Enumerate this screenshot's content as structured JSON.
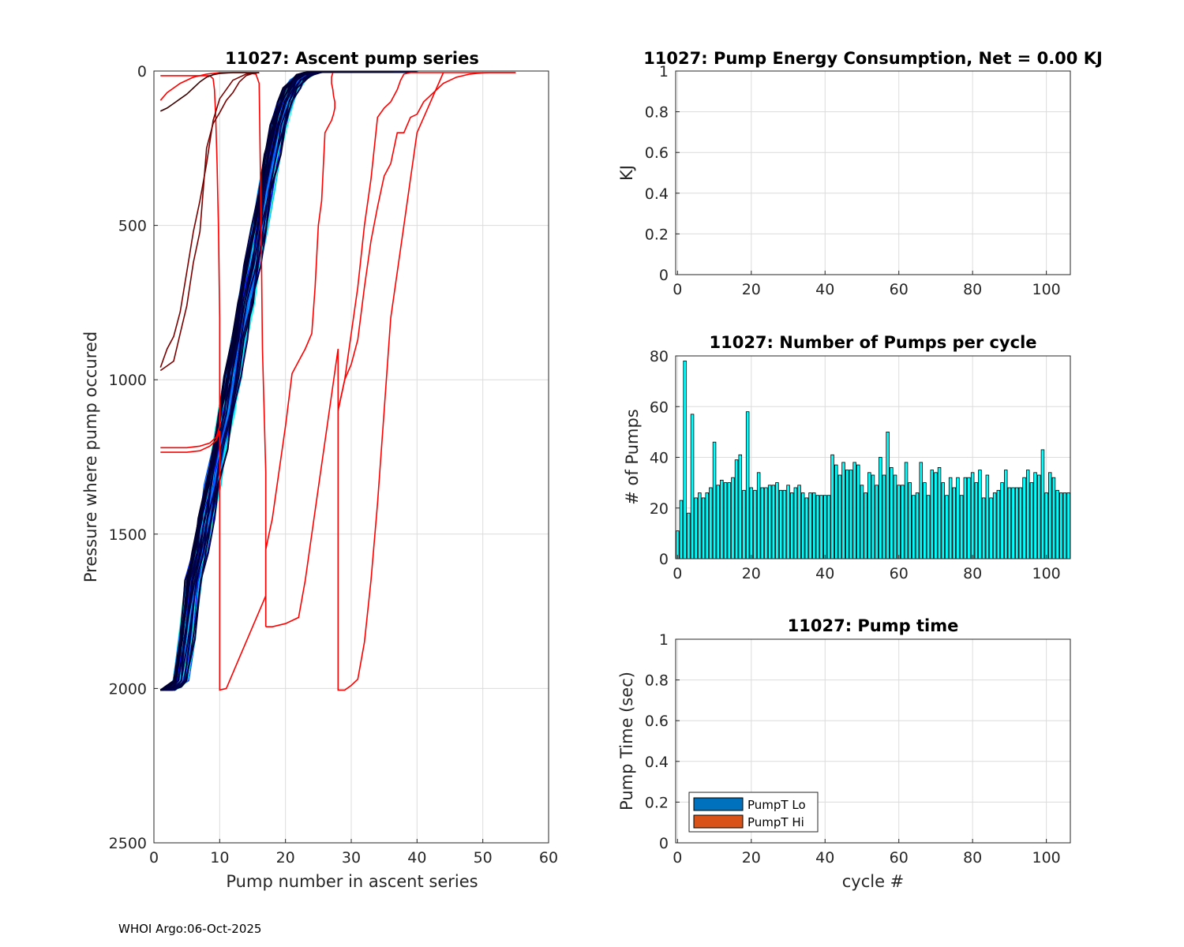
{
  "footer": "WHOI Argo:06-Oct-2025",
  "chart_data": [
    {
      "type": "line",
      "title": "11027: Ascent pump series",
      "xlabel": "Pump number in ascent series",
      "ylabel": "Pressure where pump occured",
      "xlim": [
        0,
        60
      ],
      "ylim": [
        0,
        2500
      ],
      "y_reversed": true,
      "xticks": [
        "0",
        "10",
        "20",
        "30",
        "40",
        "50",
        "60"
      ],
      "yticks": [
        "0",
        "500",
        "1000",
        "1500",
        "2000",
        "2500"
      ],
      "grid": true,
      "bundle": {
        "count": 100,
        "colormap": "jet",
        "base_x": [
          1,
          2,
          3,
          4,
          5,
          6,
          7,
          8,
          9,
          10,
          11,
          12,
          13,
          14,
          15,
          16,
          17,
          18,
          19,
          20,
          21,
          22,
          23,
          24,
          25,
          26,
          30,
          35,
          38
        ],
        "base_y": [
          2005,
          2005,
          1995,
          1975,
          1840,
          1650,
          1560,
          1450,
          1340,
          1225,
          1110,
          990,
          870,
          750,
          630,
          510,
          390,
          270,
          175,
          100,
          55,
          28,
          12,
          5,
          3,
          3,
          3,
          3,
          3
        ]
      },
      "series": [
        {
          "name": "cycle-red-a",
          "color": "#ff0000",
          "x": [
            1,
            3,
            5,
            7,
            8.5,
            9.5,
            10,
            10,
            9.8,
            9.6,
            9.4,
            9.2,
            9,
            8.5,
            6,
            3,
            1
          ],
          "y": [
            1220,
            1220,
            1220,
            1215,
            1205,
            1185,
            1150,
            800,
            500,
            300,
            150,
            60,
            25,
            15,
            15,
            15,
            15
          ]
        },
        {
          "name": "cycle-red-b",
          "color": "#ff0000",
          "x": [
            1,
            3,
            5,
            7,
            8.5,
            9.5,
            10,
            10,
            10,
            10,
            10,
            11,
            13,
            15,
            17,
            17,
            16.5,
            16.3,
            16.1,
            16,
            15.5,
            14,
            12,
            10,
            8,
            6,
            4,
            2,
            1
          ],
          "y": [
            1235,
            1235,
            1235,
            1230,
            1215,
            1195,
            1165,
            1700,
            2005,
            2005,
            2005,
            2000,
            1900,
            1800,
            1700,
            1300,
            900,
            500,
            200,
            40,
            10,
            5,
            5,
            5,
            10,
            20,
            40,
            70,
            95
          ]
        },
        {
          "name": "cycle-red-c",
          "color": "#ff0000",
          "x": [
            17,
            17,
            17.5,
            18,
            19,
            20,
            21,
            22,
            23,
            24,
            24.5,
            25,
            25.5,
            26,
            26.5,
            27,
            27.3,
            27.5,
            27.5,
            27.3,
            27.2,
            27,
            27,
            27.2
          ],
          "y": [
            1800,
            1550,
            1500,
            1450,
            1300,
            1150,
            980,
            940,
            900,
            850,
            700,
            500,
            420,
            200,
            180,
            160,
            140,
            120,
            100,
            80,
            60,
            40,
            20,
            5
          ]
        },
        {
          "name": "cycle-red-d",
          "color": "#ff0000",
          "x": [
            17,
            18,
            20,
            22,
            23,
            24,
            25,
            26,
            27,
            28,
            28,
            29,
            30,
            31,
            32,
            33,
            34,
            35,
            36,
            38,
            40,
            44
          ],
          "y": [
            1800,
            1800,
            1790,
            1770,
            1650,
            1500,
            1350,
            1200,
            1050,
            900,
            2005,
            2005,
            1990,
            1970,
            1850,
            1650,
            1400,
            1100,
            800,
            500,
            200,
            5
          ]
        },
        {
          "name": "cycle-red-e",
          "color": "#ff0000",
          "x": [
            28,
            29,
            30,
            31,
            32,
            33,
            34,
            35,
            36,
            37,
            37.5,
            38,
            39,
            40,
            41,
            42,
            43,
            44,
            45,
            46,
            47,
            48,
            50,
            52,
            54,
            55
          ],
          "y": [
            1100,
            1000,
            850,
            700,
            500,
            350,
            150,
            120,
            100,
            60,
            30,
            10,
            5,
            5,
            5,
            5,
            5,
            5,
            5,
            5,
            5,
            5,
            5,
            5,
            5,
            5
          ]
        },
        {
          "name": "cycle-red-f",
          "color": "#ff0000",
          "x": [
            28,
            29,
            30,
            31,
            32,
            33,
            34,
            35,
            36,
            37,
            38,
            39,
            40,
            41,
            42,
            43,
            44,
            45,
            46,
            47,
            48,
            49,
            50,
            51,
            52,
            53,
            54,
            55
          ],
          "y": [
            1100,
            1000,
            950,
            870,
            700,
            550,
            440,
            340,
            300,
            200,
            200,
            150,
            140,
            100,
            80,
            60,
            40,
            30,
            20,
            15,
            10,
            8,
            6,
            5,
            5,
            5,
            5,
            5
          ]
        },
        {
          "name": "cycle-darkred-a",
          "color": "#7a0000",
          "x": [
            1,
            2,
            3,
            4,
            5,
            6,
            7,
            8,
            9,
            10,
            11,
            12,
            13,
            14,
            15,
            16
          ],
          "y": [
            970,
            955,
            940,
            850,
            760,
            620,
            520,
            250,
            170,
            135,
            95,
            70,
            35,
            15,
            8,
            5
          ]
        },
        {
          "name": "cycle-darkred-b",
          "color": "#7a0000",
          "x": [
            1,
            2,
            3,
            4,
            5,
            6,
            7,
            8,
            9,
            10,
            12,
            14,
            16
          ],
          "y": [
            960,
            900,
            860,
            780,
            650,
            520,
            420,
            300,
            160,
            90,
            30,
            10,
            5
          ]
        },
        {
          "name": "cycle-darkred-c",
          "color": "#3a0000",
          "x": [
            1,
            2,
            3,
            4,
            5,
            6,
            7,
            8,
            9,
            10,
            12,
            14,
            16
          ],
          "y": [
            130,
            120,
            105,
            90,
            75,
            55,
            35,
            20,
            12,
            8,
            5,
            5,
            5
          ]
        }
      ]
    },
    {
      "type": "bar",
      "title": "11027: Pump Energy Consumption,  Net =   0.00 KJ",
      "xlabel": "",
      "ylabel": "KJ",
      "xlim": [
        -0.5,
        106.5
      ],
      "ylim": [
        0,
        1
      ],
      "xticks": [
        "0",
        "20",
        "40",
        "60",
        "80",
        "100"
      ],
      "yticks": [
        "0",
        "0.2",
        "0.4",
        "0.6",
        "0.8",
        "1"
      ],
      "grid": true,
      "values": []
    },
    {
      "type": "bar",
      "title": "11027: Number of Pumps per cycle",
      "xlabel": "",
      "ylabel": "# of Pumps",
      "xlim": [
        -0.5,
        106.5
      ],
      "ylim": [
        0,
        80
      ],
      "xticks": [
        "0",
        "20",
        "40",
        "60",
        "80",
        "100"
      ],
      "yticks": [
        "0",
        "20",
        "40",
        "60",
        "80"
      ],
      "grid": true,
      "bar_color": "#00ffff",
      "categories_start": 0,
      "values": [
        11,
        23,
        78,
        18,
        57,
        24,
        26,
        24,
        26,
        28,
        46,
        29,
        31,
        30,
        30,
        32,
        39,
        41,
        27,
        58,
        28,
        27,
        34,
        28,
        28,
        29,
        29,
        30,
        27,
        27,
        29,
        26,
        28,
        29,
        26,
        24,
        26,
        26,
        25,
        25,
        25,
        25,
        41,
        37,
        33,
        38,
        35,
        35,
        38,
        37,
        29,
        26,
        34,
        33,
        29,
        40,
        33,
        50,
        36,
        33,
        29,
        29,
        38,
        30,
        25,
        26,
        38,
        30,
        25,
        35,
        34,
        36,
        30,
        25,
        32,
        28,
        32,
        25,
        32,
        32,
        34,
        30,
        35,
        24,
        33,
        24,
        26,
        27,
        30,
        35,
        28,
        28,
        28,
        28,
        32,
        35,
        30,
        34,
        33,
        43,
        26,
        34,
        32,
        27,
        26,
        26,
        26
      ]
    },
    {
      "type": "bar",
      "title": "11027: Pump time",
      "xlabel": "cycle #",
      "ylabel": "Pump Time (sec)",
      "xlim": [
        -0.5,
        106.5
      ],
      "ylim": [
        0,
        1
      ],
      "xticks": [
        "0",
        "20",
        "40",
        "60",
        "80",
        "100"
      ],
      "yticks": [
        "0",
        "0.2",
        "0.4",
        "0.6",
        "0.8",
        "1"
      ],
      "grid": true,
      "legend": "bottom-left",
      "series": [
        {
          "name": "PumpT Lo",
          "color": "#0072bd",
          "values": []
        },
        {
          "name": "PumpT Hi",
          "color": "#d95319",
          "values": []
        }
      ]
    }
  ]
}
